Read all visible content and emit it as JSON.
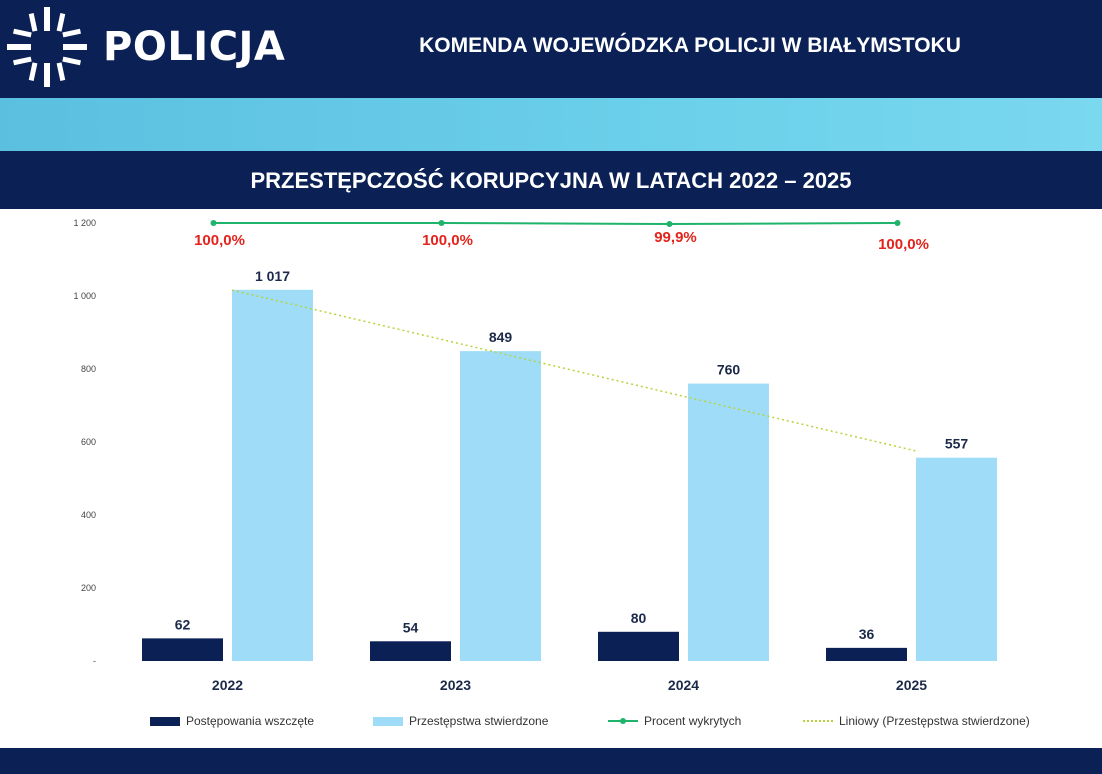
{
  "header": {
    "brand": "POLICJA",
    "title": "KOMENDA WOJEWÓDZKA POLICJI W BIAŁYMSTOKU"
  },
  "logo_icon": "police-star-icon",
  "colors": {
    "navy": "#0b2155",
    "series_initiated": "#0b2155",
    "series_confirmed": "#9fdcf8",
    "percent_line": "#1fb36b",
    "percent_label": "#e3231c",
    "trendline": "#b5d43d"
  },
  "chart_data": {
    "type": "bar",
    "title": "PRZESTĘPCZOŚĆ KORUPCYJNA W LATACH 2022 – 2025",
    "categories": [
      "2022",
      "2023",
      "2024",
      "2025"
    ],
    "series": [
      {
        "name": "Postępowania wszczęte",
        "type": "bar",
        "values": [
          62,
          54,
          80,
          36
        ],
        "labels": [
          "62",
          "54",
          "80",
          "36"
        ]
      },
      {
        "name": "Przestępstwa stwierdzone",
        "type": "bar",
        "values": [
          1017,
          849,
          760,
          557
        ],
        "labels": [
          "1 017",
          "849",
          "760",
          "557"
        ]
      },
      {
        "name": "Procent wykrytych",
        "type": "line",
        "values": [
          100.0,
          100.0,
          99.9,
          100.0
        ],
        "labels": [
          "100,0%",
          "100,0%",
          "99,9%",
          "100,0%"
        ]
      },
      {
        "name": "Liniowy (Przestępstwa stwierdzone)",
        "type": "trendline",
        "of": "Przestępstwa stwierdzone"
      }
    ],
    "y_ticks": [
      "-",
      "200",
      "400",
      "600",
      "800",
      "1 000",
      "1 200"
    ],
    "ylim": [
      0,
      1200
    ],
    "grid": false,
    "legend_position": "bottom"
  }
}
